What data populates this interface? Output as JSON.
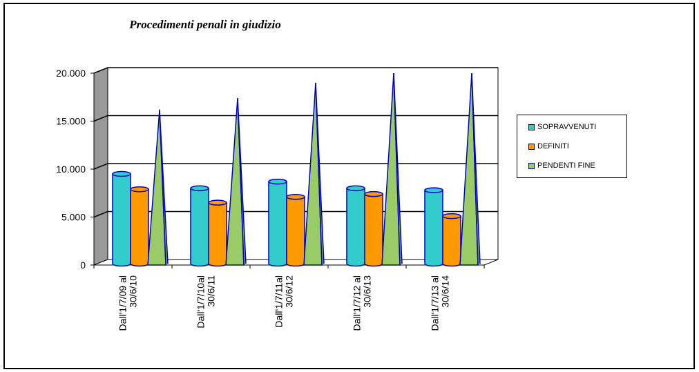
{
  "chart_data": {
    "type": "bar",
    "title": "Procedimenti penali in giudizio",
    "categories": [
      [
        "Dall'1/7/09 al",
        "30/6/10"
      ],
      [
        "Dall'1/7/10al",
        "30/6/11"
      ],
      [
        "Dall'1/7/11al",
        "30/6/12"
      ],
      [
        "Dall'1/7/12 al",
        "30/6/13"
      ],
      [
        "Dall'1/7/13 al",
        "30/6/14"
      ]
    ],
    "series": [
      {
        "name": "SOPRAVVENUTI",
        "shape": "cylinder",
        "color": "#33cccc",
        "values": [
          9500,
          8000,
          8700,
          8000,
          7800
        ]
      },
      {
        "name": "DEFINITI",
        "shape": "cylinder",
        "color": "#ff9900",
        "values": [
          7900,
          6500,
          7100,
          7400,
          5100
        ]
      },
      {
        "name": "PENDENTI  FINE",
        "shape": "pyramid",
        "color": "#99cc66",
        "values": [
          16200,
          17400,
          19000,
          20000,
          20000
        ]
      }
    ],
    "ylim": [
      0,
      20000
    ],
    "yticks": [
      "0",
      "5.000",
      "10.000",
      "15.000",
      "20.000"
    ],
    "grid": true,
    "legend_position": "right",
    "colors": {
      "wall": "#999999",
      "outline": "#0000cc",
      "grid": "#000000"
    }
  }
}
